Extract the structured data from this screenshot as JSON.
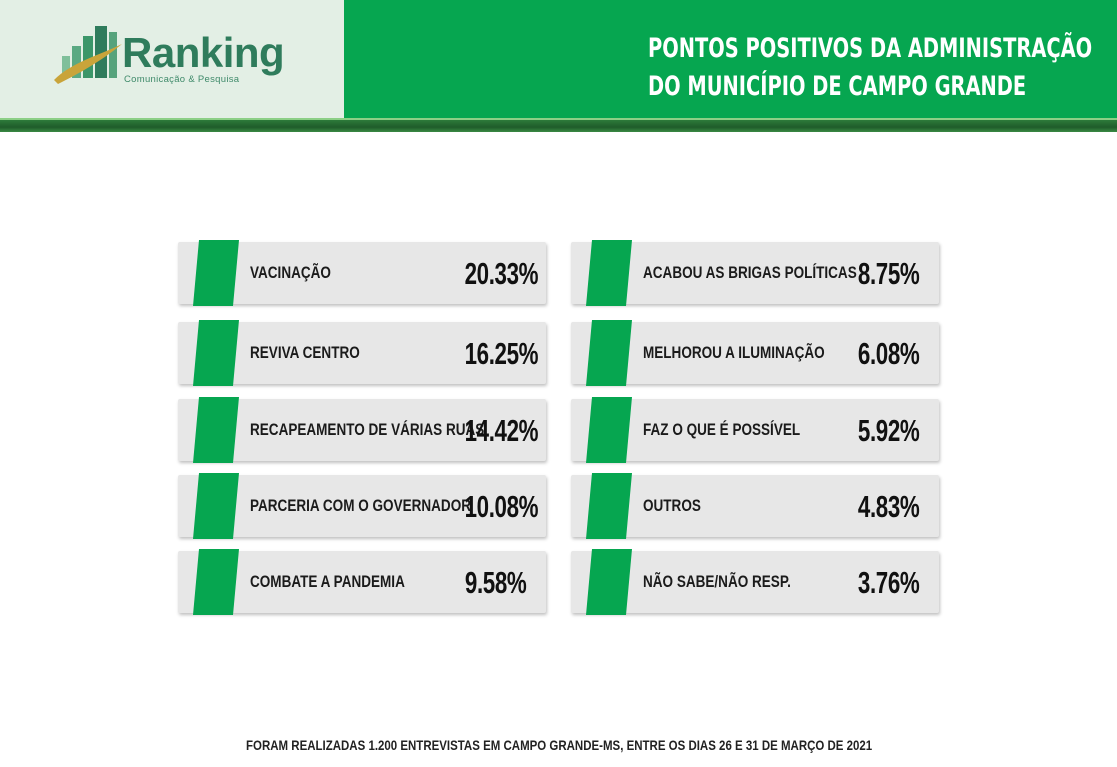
{
  "header": {
    "logo_text": "Ranking",
    "logo_subtitle": "Comunicação & Pesquisa",
    "title_line1": "PONTOS POSITIVOS DA ADMINISTRAÇÃO",
    "title_line2": "DO MUNICÍPIO DE CAMPO GRANDE",
    "colors": {
      "brand_green": "#06a650",
      "logo_bg": "#e3efe5",
      "card_bg": "#e7e7e7"
    }
  },
  "items": [
    {
      "label": "VACINAÇÃO",
      "value": "20.33%"
    },
    {
      "label": "REVIVA CENTRO",
      "value": "16.25%"
    },
    {
      "label": "RECAPEAMENTO DE VÁRIAS RUAS",
      "value": "14.42%"
    },
    {
      "label": "PARCERIA COM O GOVERNADOR",
      "value": "10.08%"
    },
    {
      "label": "COMBATE A PANDEMIA",
      "value": "9.58%"
    },
    {
      "label": "ACABOU AS BRIGAS POLÍTICAS",
      "value": "8.75%"
    },
    {
      "label": "MELHOROU A ILUMINAÇÃO",
      "value": "6.08%"
    },
    {
      "label": "FAZ O QUE É POSSÍVEL",
      "value": "5.92%"
    },
    {
      "label": "OUTROS",
      "value": "4.83%"
    },
    {
      "label": "NÃO SABE/NÃO RESP.",
      "value": "3.76%"
    }
  ],
  "footer": "FORAM REALIZADAS 1.200 ENTREVISTAS EM CAMPO GRANDE-MS, ENTRE OS  DIAS 26 E 31 DE MARÇO DE 2021"
}
